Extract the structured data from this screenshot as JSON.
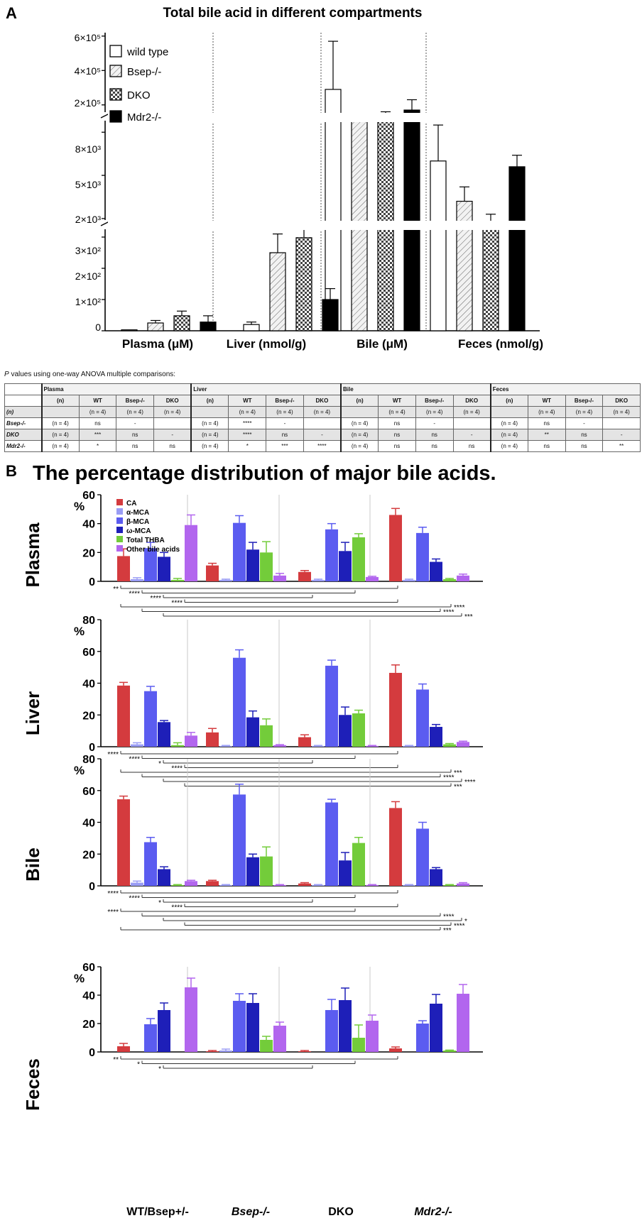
{
  "panel_a": {
    "letter": "A",
    "title": "Total bile acid in different compartments",
    "legend": [
      "wild type",
      "Bsep-/-",
      "DKO",
      "Mdr2-/-"
    ],
    "y_ticks_top": [
      "6×10⁵",
      "4×10⁵",
      "2×10⁵"
    ],
    "y_ticks_mid": [
      "8×10³",
      "5×10³",
      "2×10³"
    ],
    "y_ticks_low": [
      "3×10²",
      "2×10²",
      "1×10²",
      "0"
    ],
    "categories": [
      "Plasma (μM)",
      "Liver (nmol/g)",
      "Bile (μM)",
      "Feces (nmol/g)"
    ]
  },
  "table": {
    "caption_p": "P",
    "caption_rest": " values using one-way ANOVA multiple comparisons:",
    "groups": [
      "Plasma",
      "Liver",
      "Bile",
      "Feces"
    ],
    "n_label": "(n)",
    "cols": [
      "WT",
      "Bsep-/-",
      "DKO"
    ],
    "n_val": "(n = 4)",
    "rows": [
      {
        "label": "Bsep-/-",
        "cells": [
          [
            "(n = 4)",
            "ns",
            "-",
            ""
          ],
          [
            "(n = 4)",
            "****",
            "-",
            ""
          ],
          [
            "(n = 4)",
            "ns",
            "-",
            ""
          ],
          [
            "(n = 4)",
            "ns",
            "-",
            ""
          ]
        ]
      },
      {
        "label": "DKO",
        "cells": [
          [
            "(n = 4)",
            "***",
            "ns",
            "-"
          ],
          [
            "(n = 4)",
            "****",
            "ns",
            "-"
          ],
          [
            "(n = 4)",
            "ns",
            "ns",
            "-"
          ],
          [
            "(n = 4)",
            "**",
            "ns",
            "-"
          ]
        ]
      },
      {
        "label": "Mdr2-/-",
        "cells": [
          [
            "(n = 4)",
            "*",
            "ns",
            "ns"
          ],
          [
            "(n = 4)",
            "*",
            "***",
            "****"
          ],
          [
            "(n = 4)",
            "ns",
            "ns",
            "ns"
          ],
          [
            "(n = 4)",
            "ns",
            "ns",
            "**"
          ]
        ]
      }
    ]
  },
  "panel_b": {
    "letter": "B",
    "title": "The percentage distribution of major bile acids.",
    "percent_label": "%",
    "legend": [
      "CA",
      "α-MCA",
      "β-MCA",
      "ω-MCA",
      "Total THBA",
      "Other bile acids"
    ],
    "colors": [
      "#d43b3e",
      "#9a9df5",
      "#5b5cf0",
      "#1e1fb8",
      "#73cc3a",
      "#b266ee"
    ],
    "genotypes": [
      "WT/Bsep+/-",
      "Bsep-/-",
      "DKO",
      "Mdr2-/-"
    ],
    "sig_plasma": [
      "**",
      "****",
      "****",
      "****",
      "****",
      "****",
      "***"
    ],
    "sig_liver": [
      "****",
      "****",
      "*",
      "****",
      "***",
      "****",
      "****",
      "***"
    ],
    "sig_bile": [
      "****",
      "****",
      "*",
      "****",
      "****",
      "****",
      "*",
      "****",
      "***"
    ],
    "sig_feces": [
      "**",
      "*",
      "*"
    ]
  },
  "chart_data": [
    {
      "type": "bar",
      "title": "Total bile acid in different compartments",
      "categories": [
        "Plasma (μM)",
        "Liver (nmol/g)",
        "Bile (μM)",
        "Feces (nmol/g)"
      ],
      "series": [
        {
          "name": "wild type",
          "values": [
            3,
            20,
            290000,
            6000
          ],
          "errors": [
            0,
            8,
            280000,
            2500
          ]
        },
        {
          "name": "Bsep-/-",
          "values": [
            25,
            250,
            110000,
            3200
          ],
          "errors": [
            8,
            60,
            15000,
            1000
          ]
        },
        {
          "name": "DKO",
          "values": [
            48,
            298,
            130000,
            1700
          ],
          "errors": [
            15,
            35,
            30000,
            600
          ]
        },
        {
          "name": "Mdr2-/-",
          "values": [
            28,
            100,
            170000,
            5600
          ],
          "errors": [
            20,
            35,
            60000,
            800
          ]
        }
      ],
      "y_scale": "broken axis: 0–3×10² | 2×10³–8×10³ | 2×10⁵–6×10⁵"
    },
    {
      "type": "bar",
      "title": "Plasma",
      "ylim": [
        0,
        60
      ],
      "yticks": [
        0,
        20,
        40,
        60
      ],
      "categories": [
        "WT/Bsep+/-",
        "Bsep-/-",
        "DKO",
        "Mdr2-/-"
      ],
      "series": [
        {
          "name": "CA",
          "values": [
            17.5,
            11,
            6.5,
            46
          ],
          "errors": [
            5,
            1.5,
            1,
            4.5
          ]
        },
        {
          "name": "α-MCA",
          "values": [
            1.5,
            1,
            1,
            1
          ],
          "errors": [
            1,
            0.5,
            0.5,
            0.5
          ]
        },
        {
          "name": "β-MCA",
          "values": [
            23,
            40.5,
            36,
            33.5
          ],
          "errors": [
            4,
            5,
            4,
            4
          ]
        },
        {
          "name": "ω-MCA",
          "values": [
            17,
            22,
            21,
            13.5
          ],
          "errors": [
            3,
            5,
            6,
            2
          ]
        },
        {
          "name": "Total THBA",
          "values": [
            1,
            20,
            30.5,
            1.5
          ],
          "errors": [
            1,
            7.5,
            2.5,
            0.5
          ]
        },
        {
          "name": "Other bile acids",
          "values": [
            39,
            4,
            3,
            4
          ],
          "errors": [
            7,
            1.5,
            0.5,
            1
          ]
        }
      ]
    },
    {
      "type": "bar",
      "title": "Liver",
      "ylim": [
        0,
        80
      ],
      "yticks": [
        0,
        20,
        40,
        60,
        80
      ],
      "categories": [
        "WT/Bsep+/-",
        "Bsep-/-",
        "DKO",
        "Mdr2-/-"
      ],
      "series": [
        {
          "name": "CA",
          "values": [
            38.5,
            9,
            6,
            46.5
          ],
          "errors": [
            2,
            2.5,
            1.5,
            5
          ]
        },
        {
          "name": "α-MCA",
          "values": [
            1.5,
            0.5,
            0.5,
            0.5
          ],
          "errors": [
            1,
            0.3,
            0.3,
            0.3
          ]
        },
        {
          "name": "β-MCA",
          "values": [
            35,
            56,
            51,
            36
          ],
          "errors": [
            3,
            5,
            3.5,
            3.5
          ]
        },
        {
          "name": "ω-MCA",
          "values": [
            15.5,
            18.5,
            20,
            12.5
          ],
          "errors": [
            1,
            4,
            5,
            1.5
          ]
        },
        {
          "name": "Total THBA",
          "values": [
            1,
            13.5,
            21,
            1.5
          ],
          "errors": [
            1.5,
            4,
            2,
            0.5
          ]
        },
        {
          "name": "Other bile acids",
          "values": [
            7,
            1,
            0.5,
            3
          ],
          "errors": [
            2,
            0.3,
            0.3,
            0.5
          ]
        }
      ]
    },
    {
      "type": "bar",
      "title": "Bile",
      "ylim": [
        0,
        80
      ],
      "yticks": [
        0,
        20,
        40,
        60,
        80
      ],
      "categories": [
        "WT/Bsep+/-",
        "Bsep-/-",
        "DKO",
        "Mdr2-/-"
      ],
      "series": [
        {
          "name": "CA",
          "values": [
            54.5,
            3,
            1.5,
            49
          ],
          "errors": [
            2,
            0.5,
            0.5,
            4
          ]
        },
        {
          "name": "α-MCA",
          "values": [
            2,
            0.5,
            0.5,
            0.5
          ],
          "errors": [
            1,
            0.3,
            0.3,
            0.3
          ]
        },
        {
          "name": "β-MCA",
          "values": [
            27.5,
            57.5,
            52.5,
            36
          ],
          "errors": [
            3,
            6.5,
            2,
            4
          ]
        },
        {
          "name": "ω-MCA",
          "values": [
            10.5,
            18,
            16,
            10.5
          ],
          "errors": [
            1.5,
            2,
            5,
            1
          ]
        },
        {
          "name": "Total THBA",
          "values": [
            0.5,
            18.5,
            27,
            0.5
          ],
          "errors": [
            0.3,
            6,
            3.5,
            0.3
          ]
        },
        {
          "name": "Other bile acids",
          "values": [
            3,
            0.5,
            0.5,
            1.5
          ],
          "errors": [
            0.5,
            0.3,
            0.3,
            0.5
          ]
        }
      ]
    },
    {
      "type": "bar",
      "title": "Feces",
      "ylim": [
        0,
        60
      ],
      "yticks": [
        0,
        20,
        40,
        60
      ],
      "categories": [
        "WT/Bsep+/-",
        "Bsep-/-",
        "DKO",
        "Mdr2-/-"
      ],
      "series": [
        {
          "name": "CA",
          "values": [
            4,
            0.5,
            0.5,
            2.5
          ],
          "errors": [
            2,
            0.5,
            0.5,
            1
          ]
        },
        {
          "name": "α-MCA",
          "values": [
            0,
            1,
            0,
            0
          ],
          "errors": [
            0,
            1,
            0,
            0
          ]
        },
        {
          "name": "β-MCA",
          "values": [
            19.5,
            36,
            29.5,
            20
          ],
          "errors": [
            4,
            5,
            7.5,
            2
          ]
        },
        {
          "name": "ω-MCA",
          "values": [
            29.5,
            34.5,
            36.5,
            34
          ],
          "errors": [
            5,
            6.5,
            8.5,
            6.5
          ]
        },
        {
          "name": "Total THBA",
          "values": [
            0,
            8.5,
            10,
            1
          ],
          "errors": [
            0,
            2.5,
            9,
            0.3
          ]
        },
        {
          "name": "Other bile acids",
          "values": [
            45.5,
            18.5,
            22,
            41
          ],
          "errors": [
            6.5,
            2.5,
            4,
            6.5
          ]
        }
      ]
    }
  ]
}
